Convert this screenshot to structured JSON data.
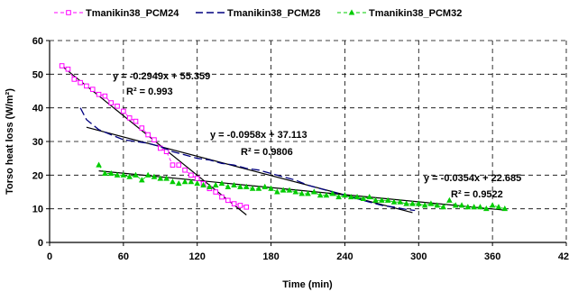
{
  "chart_data": {
    "type": "scatter",
    "xlabel": "Time (min)",
    "ylabel": "Torso heat loss (W/m²)",
    "xlim": [
      0,
      420
    ],
    "ylim": [
      0,
      60
    ],
    "xticks": [
      "0",
      "60",
      "120",
      "180",
      "240",
      "300",
      "360",
      "420"
    ],
    "yticks": [
      "0",
      "10",
      "20",
      "30",
      "40",
      "50",
      "60"
    ],
    "grid": "dashed",
    "legend_position": "top",
    "series": [
      {
        "name": "Tmanikin38_PCM24",
        "color": "#ff00ff",
        "marker": "square",
        "line": "dashed",
        "x": [
          10,
          15,
          20,
          25,
          30,
          35,
          40,
          45,
          50,
          55,
          60,
          65,
          70,
          75,
          80,
          85,
          90,
          95,
          100,
          105,
          110,
          115,
          120,
          125,
          130,
          135,
          140,
          145,
          150,
          155,
          160
        ],
        "y": [
          52.5,
          51.5,
          48.5,
          47.5,
          46.5,
          45.5,
          44.0,
          43.5,
          41.5,
          40.5,
          39.0,
          37.0,
          36.0,
          34.0,
          32.0,
          30.5,
          28.0,
          27.0,
          23.0,
          23.0,
          21.5,
          20.0,
          19.0,
          17.5,
          16.0,
          15.0,
          13.5,
          12.5,
          11.5,
          11.0,
          10.5
        ]
      },
      {
        "name": "Tmanikin38_PCM28",
        "color": "#000080",
        "marker": "none",
        "line": "dashed",
        "x": [
          25,
          30,
          40,
          50,
          60,
          70,
          80,
          90,
          100,
          110,
          120,
          130,
          140,
          150,
          160,
          170,
          180,
          190,
          200,
          210,
          220,
          230,
          240,
          250,
          260,
          270,
          280,
          290,
          297
        ],
        "y": [
          40.0,
          36.5,
          33.5,
          32.0,
          30.5,
          30.0,
          29.5,
          28.5,
          27.0,
          26.0,
          25.0,
          24.5,
          23.5,
          23.0,
          22.0,
          21.5,
          20.5,
          19.5,
          18.5,
          17.0,
          16.0,
          15.0,
          14.0,
          13.0,
          12.0,
          11.0,
          10.5,
          9.8,
          9.5
        ]
      },
      {
        "name": "Tmanikin38_PCM32",
        "color": "#00cc00",
        "marker": "triangle",
        "line": "dashed",
        "x": [
          40,
          45,
          50,
          55,
          60,
          65,
          70,
          75,
          80,
          85,
          90,
          95,
          100,
          105,
          110,
          115,
          120,
          125,
          130,
          135,
          140,
          145,
          150,
          155,
          160,
          165,
          170,
          175,
          180,
          185,
          190,
          195,
          200,
          205,
          210,
          215,
          220,
          225,
          230,
          235,
          240,
          245,
          250,
          255,
          260,
          265,
          270,
          275,
          280,
          285,
          290,
          295,
          300,
          305,
          310,
          315,
          320,
          325,
          330,
          335,
          340,
          345,
          350,
          355,
          360,
          365,
          370
        ],
        "y": [
          23.0,
          20.5,
          20.5,
          20.0,
          20.0,
          19.5,
          20.0,
          18.5,
          20.0,
          19.5,
          19.0,
          19.0,
          18.0,
          17.5,
          18.0,
          18.0,
          17.5,
          17.0,
          16.5,
          17.0,
          17.5,
          16.5,
          17.0,
          16.5,
          16.5,
          16.0,
          16.0,
          16.5,
          16.0,
          15.0,
          15.5,
          15.5,
          15.0,
          14.5,
          14.5,
          15.0,
          14.0,
          14.0,
          14.5,
          13.5,
          14.0,
          13.5,
          13.5,
          13.0,
          13.5,
          12.5,
          12.5,
          12.5,
          12.0,
          12.0,
          11.5,
          11.5,
          11.5,
          11.0,
          11.5,
          11.0,
          10.5,
          12.5,
          11.0,
          11.0,
          10.5,
          10.5,
          10.5,
          10.0,
          11.0,
          10.5,
          10.0
        ]
      }
    ],
    "trendlines": [
      {
        "series": "Tmanikin38_PCM24",
        "slope": -0.2949,
        "intercept": 55.359,
        "x_range": [
          10,
          160
        ],
        "equation": "y = -0.2949x + 55.359",
        "r2": "R² = 0.993"
      },
      {
        "series": "Tmanikin38_PCM28",
        "slope": -0.0958,
        "intercept": 37.113,
        "x_range": [
          30,
          295
        ],
        "equation": "y = -0.0958x + 37.113",
        "r2": "R² = 0.9806"
      },
      {
        "series": "Tmanikin38_PCM32",
        "slope": -0.0354,
        "intercept": 22.685,
        "x_range": [
          40,
          370
        ],
        "equation": "y = -0.0354x + 22.685",
        "r2": "R² = 0.9522"
      }
    ]
  }
}
